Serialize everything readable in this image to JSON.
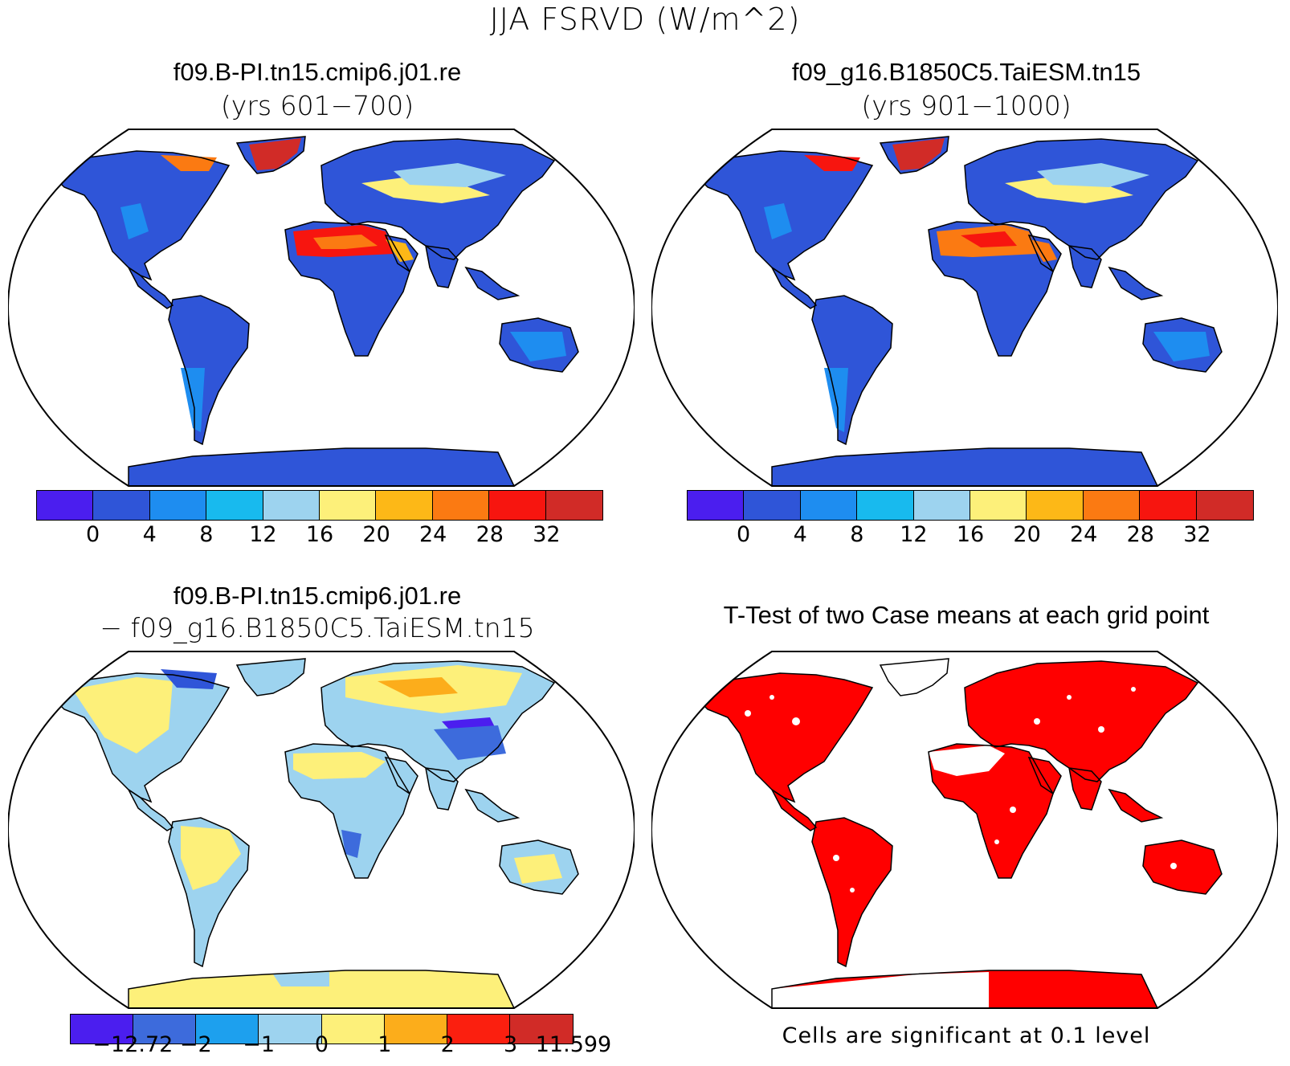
{
  "title": "JJA FSRVD (W/m^2)",
  "panels": [
    {
      "id": "case1",
      "title": "f09.B-PI.tn15.cmip6.j01.re",
      "subtitle": "(yrs 601−700)"
    },
    {
      "id": "case2",
      "title": "f09_g16.B1850C5.TaiESM.tn15",
      "subtitle": "(yrs 901−1000)"
    },
    {
      "id": "diff",
      "title": "f09.B-PI.tn15.cmip6.j01.re",
      "subtitle": "− f09_g16.B1850C5.TaiESM.tn15"
    },
    {
      "id": "ttest",
      "title": "T-Test of two Case means at each grid point",
      "subtitle": ""
    }
  ],
  "colorbar_abs": {
    "colors": [
      "#4b1eef",
      "#2f55d8",
      "#1e8df0",
      "#18baee",
      "#9dd3ef",
      "#fdf07a",
      "#fdb817",
      "#fb7a12",
      "#f7150f",
      "#d12b27"
    ],
    "ticks": [
      "0",
      "4",
      "8",
      "12",
      "16",
      "20",
      "24",
      "28",
      "32"
    ]
  },
  "colorbar_diff": {
    "colors": [
      "#4b1eef",
      "#3d6bdc",
      "#1da0ee",
      "#9dd3ef",
      "#fdf07a",
      "#fcad1b",
      "#fb1f0f",
      "#d12b27"
    ],
    "ticks": [
      "−12.72",
      "−2",
      "−1",
      "0",
      "1",
      "2",
      "3",
      "11.599"
    ]
  },
  "significance_note": "Cells are significant at 0.1 level",
  "colors": {
    "land_low": "#2f55d8",
    "sig_red": "#ff0000",
    "ocean": "#ffffff"
  }
}
